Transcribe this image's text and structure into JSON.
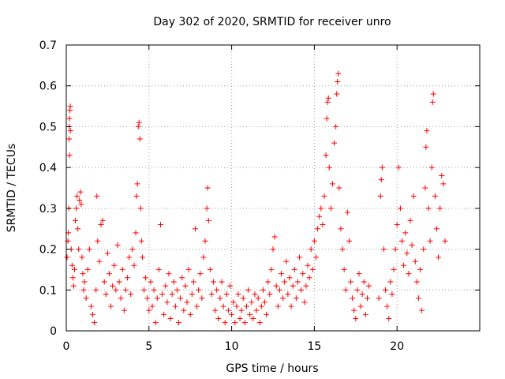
{
  "chart_data": {
    "type": "scatter",
    "title": "Day 302 of 2020, SRMTID for receiver unro",
    "xlabel": "GPS time / hours",
    "ylabel": "SRMTID / TECUs",
    "xlim": [
      0,
      25
    ],
    "ylim": [
      0,
      0.7
    ],
    "x_ticks": [
      0,
      5,
      10,
      15,
      20
    ],
    "y_ticks": [
      0,
      0.1,
      0.2,
      0.3,
      0.4,
      0.5,
      0.6,
      0.7
    ],
    "x_tick_labels": [
      "0",
      "5",
      "10",
      "15",
      "20"
    ],
    "y_tick_labels": [
      "0",
      "0.1",
      "0.2",
      "0.3",
      "0.4",
      "0.5",
      "0.6",
      "0.7"
    ],
    "grid": true,
    "marker": "+",
    "series": [
      {
        "name": "SRMTID",
        "color": "#ff0000",
        "points": [
          [
            0.05,
            0.18
          ],
          [
            0.1,
            0.22
          ],
          [
            0.12,
            0.24
          ],
          [
            0.15,
            0.3
          ],
          [
            0.17,
            0.47
          ],
          [
            0.18,
            0.5
          ],
          [
            0.2,
            0.52
          ],
          [
            0.22,
            0.54
          ],
          [
            0.24,
            0.55
          ],
          [
            0.25,
            0.49
          ],
          [
            0.2,
            0.43
          ],
          [
            0.3,
            0.2
          ],
          [
            0.35,
            0.16
          ],
          [
            0.4,
            0.13
          ],
          [
            0.45,
            0.11
          ],
          [
            0.5,
            0.15
          ],
          [
            0.55,
            0.27
          ],
          [
            0.6,
            0.3
          ],
          [
            0.65,
            0.33
          ],
          [
            0.7,
            0.25
          ],
          [
            0.75,
            0.2
          ],
          [
            0.8,
            0.32
          ],
          [
            0.85,
            0.34
          ],
          [
            0.9,
            0.31
          ],
          [
            0.95,
            0.18
          ],
          [
            1.0,
            0.14
          ],
          [
            1.05,
            0.1
          ],
          [
            1.1,
            0.12
          ],
          [
            1.2,
            0.08
          ],
          [
            1.3,
            0.15
          ],
          [
            1.4,
            0.2
          ],
          [
            1.5,
            0.06
          ],
          [
            1.6,
            0.04
          ],
          [
            1.7,
            0.02
          ],
          [
            1.8,
            0.1
          ],
          [
            1.85,
            0.33
          ],
          [
            1.9,
            0.22
          ],
          [
            2.0,
            0.17
          ],
          [
            2.1,
            0.26
          ],
          [
            2.2,
            0.27
          ],
          [
            2.3,
            0.12
          ],
          [
            2.4,
            0.09
          ],
          [
            2.5,
            0.19
          ],
          [
            2.6,
            0.14
          ],
          [
            2.7,
            0.06
          ],
          [
            2.8,
            0.11
          ],
          [
            2.9,
            0.16
          ],
          [
            3.0,
            0.1
          ],
          [
            3.1,
            0.21
          ],
          [
            3.2,
            0.12
          ],
          [
            3.3,
            0.08
          ],
          [
            3.4,
            0.15
          ],
          [
            3.5,
            0.05
          ],
          [
            3.6,
            0.1
          ],
          [
            3.7,
            0.13
          ],
          [
            3.8,
            0.18
          ],
          [
            3.9,
            0.09
          ],
          [
            4.0,
            0.2
          ],
          [
            4.1,
            0.16
          ],
          [
            4.2,
            0.24
          ],
          [
            4.25,
            0.33
          ],
          [
            4.3,
            0.36
          ],
          [
            4.35,
            0.5
          ],
          [
            4.4,
            0.51
          ],
          [
            4.45,
            0.47
          ],
          [
            4.5,
            0.3
          ],
          [
            4.55,
            0.22
          ],
          [
            4.6,
            0.18
          ],
          [
            4.7,
            0.1
          ],
          [
            4.8,
            0.13
          ],
          [
            4.9,
            0.08
          ],
          [
            5.0,
            0.05
          ],
          [
            5.1,
            0.12
          ],
          [
            5.2,
            0.06
          ],
          [
            5.3,
            0.1
          ],
          [
            5.4,
            0.02
          ],
          [
            5.5,
            0.08
          ],
          [
            5.6,
            0.15
          ],
          [
            5.7,
            0.26
          ],
          [
            5.8,
            0.09
          ],
          [
            5.9,
            0.04
          ],
          [
            6.0,
            0.11
          ],
          [
            6.1,
            0.07
          ],
          [
            6.2,
            0.14
          ],
          [
            6.3,
            0.03
          ],
          [
            6.4,
            0.09
          ],
          [
            6.5,
            0.12
          ],
          [
            6.6,
            0.06
          ],
          [
            6.7,
            0.1
          ],
          [
            6.8,
            0.02
          ],
          [
            6.9,
            0.08
          ],
          [
            7.0,
            0.13
          ],
          [
            7.1,
            0.05
          ],
          [
            7.2,
            0.11
          ],
          [
            7.3,
            0.07
          ],
          [
            7.4,
            0.15
          ],
          [
            7.5,
            0.04
          ],
          [
            7.6,
            0.09
          ],
          [
            7.7,
            0.12
          ],
          [
            7.8,
            0.25
          ],
          [
            7.9,
            0.06
          ],
          [
            8.0,
            0.1
          ],
          [
            8.1,
            0.14
          ],
          [
            8.2,
            0.08
          ],
          [
            8.3,
            0.18
          ],
          [
            8.4,
            0.22
          ],
          [
            8.5,
            0.3
          ],
          [
            8.55,
            0.35
          ],
          [
            8.6,
            0.27
          ],
          [
            8.7,
            0.15
          ],
          [
            8.8,
            0.09
          ],
          [
            8.9,
            0.12
          ],
          [
            9.0,
            0.05
          ],
          [
            9.1,
            0.1
          ],
          [
            9.2,
            0.03
          ],
          [
            9.3,
            0.08
          ],
          [
            9.4,
            0.12
          ],
          [
            9.5,
            0.06
          ],
          [
            9.6,
            0.02
          ],
          [
            9.7,
            0.09
          ],
          [
            9.8,
            0.05
          ],
          [
            9.9,
            0.11
          ],
          [
            10.0,
            0.04
          ],
          [
            10.1,
            0.07
          ],
          [
            10.2,
            0.02
          ],
          [
            10.3,
            0.06
          ],
          [
            10.4,
            0.09
          ],
          [
            10.5,
            0.03
          ],
          [
            10.6,
            0.05
          ],
          [
            10.7,
            0.08
          ],
          [
            10.8,
            0.02
          ],
          [
            10.9,
            0.06
          ],
          [
            11.0,
            0.1
          ],
          [
            11.1,
            0.04
          ],
          [
            11.2,
            0.07
          ],
          [
            11.3,
            0.03
          ],
          [
            11.4,
            0.09
          ],
          [
            11.5,
            0.05
          ],
          [
            11.6,
            0.08
          ],
          [
            11.7,
            0.02
          ],
          [
            11.8,
            0.06
          ],
          [
            11.9,
            0.1
          ],
          [
            12.0,
            0.07
          ],
          [
            12.1,
            0.04
          ],
          [
            12.2,
            0.12
          ],
          [
            12.3,
            0.09
          ],
          [
            12.4,
            0.15
          ],
          [
            12.5,
            0.2
          ],
          [
            12.6,
            0.23
          ],
          [
            12.7,
            0.11
          ],
          [
            12.8,
            0.06
          ],
          [
            12.9,
            0.1
          ],
          [
            13.0,
            0.14
          ],
          [
            13.1,
            0.08
          ],
          [
            13.2,
            0.12
          ],
          [
            13.3,
            0.17
          ],
          [
            13.4,
            0.09
          ],
          [
            13.5,
            0.13
          ],
          [
            13.6,
            0.06
          ],
          [
            13.7,
            0.11
          ],
          [
            13.8,
            0.15
          ],
          [
            13.9,
            0.08
          ],
          [
            14.0,
            0.12
          ],
          [
            14.1,
            0.18
          ],
          [
            14.2,
            0.1
          ],
          [
            14.3,
            0.14
          ],
          [
            14.4,
            0.07
          ],
          [
            14.5,
            0.11
          ],
          [
            14.6,
            0.16
          ],
          [
            14.7,
            0.13
          ],
          [
            14.8,
            0.2
          ],
          [
            14.9,
            0.15
          ],
          [
            15.0,
            0.22
          ],
          [
            15.1,
            0.18
          ],
          [
            15.2,
            0.25
          ],
          [
            15.3,
            0.28
          ],
          [
            15.4,
            0.3
          ],
          [
            15.5,
            0.26
          ],
          [
            15.6,
            0.33
          ],
          [
            15.7,
            0.43
          ],
          [
            15.75,
            0.52
          ],
          [
            15.8,
            0.56
          ],
          [
            15.85,
            0.57
          ],
          [
            15.9,
            0.4
          ],
          [
            16.0,
            0.3
          ],
          [
            16.1,
            0.36
          ],
          [
            16.2,
            0.46
          ],
          [
            16.3,
            0.5
          ],
          [
            16.35,
            0.58
          ],
          [
            16.4,
            0.61
          ],
          [
            16.45,
            0.63
          ],
          [
            16.5,
            0.35
          ],
          [
            16.6,
            0.25
          ],
          [
            16.7,
            0.2
          ],
          [
            16.8,
            0.15
          ],
          [
            16.9,
            0.1
          ],
          [
            17.0,
            0.29
          ],
          [
            17.1,
            0.22
          ],
          [
            17.2,
            0.12
          ],
          [
            17.3,
            0.08
          ],
          [
            17.4,
            0.05
          ],
          [
            17.5,
            0.03
          ],
          [
            17.6,
            0.1
          ],
          [
            17.7,
            0.14
          ],
          [
            17.8,
            0.06
          ],
          [
            17.9,
            0.09
          ],
          [
            18.0,
            0.12
          ],
          [
            18.1,
            0.04
          ],
          [
            18.2,
            0.08
          ],
          [
            18.3,
            0.11
          ],
          [
            18.9,
            0.08
          ],
          [
            19.0,
            0.33
          ],
          [
            19.05,
            0.37
          ],
          [
            19.1,
            0.4
          ],
          [
            19.2,
            0.2
          ],
          [
            19.3,
            0.1
          ],
          [
            19.4,
            0.06
          ],
          [
            19.5,
            0.03
          ],
          [
            19.6,
            0.12
          ],
          [
            19.7,
            0.09
          ],
          [
            19.8,
            0.15
          ],
          [
            19.9,
            0.2
          ],
          [
            20.0,
            0.26
          ],
          [
            20.1,
            0.4
          ],
          [
            20.2,
            0.3
          ],
          [
            20.3,
            0.22
          ],
          [
            20.4,
            0.16
          ],
          [
            20.5,
            0.24
          ],
          [
            20.6,
            0.19
          ],
          [
            20.7,
            0.14
          ],
          [
            20.8,
            0.27
          ],
          [
            20.9,
            0.21
          ],
          [
            21.0,
            0.33
          ],
          [
            21.1,
            0.17
          ],
          [
            21.2,
            0.12
          ],
          [
            21.3,
            0.08
          ],
          [
            21.4,
            0.15
          ],
          [
            21.5,
            0.05
          ],
          [
            21.6,
            0.2
          ],
          [
            21.7,
            0.35
          ],
          [
            21.75,
            0.45
          ],
          [
            21.8,
            0.49
          ],
          [
            21.9,
            0.3
          ],
          [
            22.0,
            0.22
          ],
          [
            22.1,
            0.4
          ],
          [
            22.15,
            0.56
          ],
          [
            22.2,
            0.58
          ],
          [
            22.3,
            0.33
          ],
          [
            22.4,
            0.25
          ],
          [
            22.5,
            0.18
          ],
          [
            22.6,
            0.3
          ],
          [
            22.7,
            0.38
          ],
          [
            22.8,
            0.36
          ],
          [
            22.9,
            0.22
          ]
        ]
      }
    ]
  }
}
